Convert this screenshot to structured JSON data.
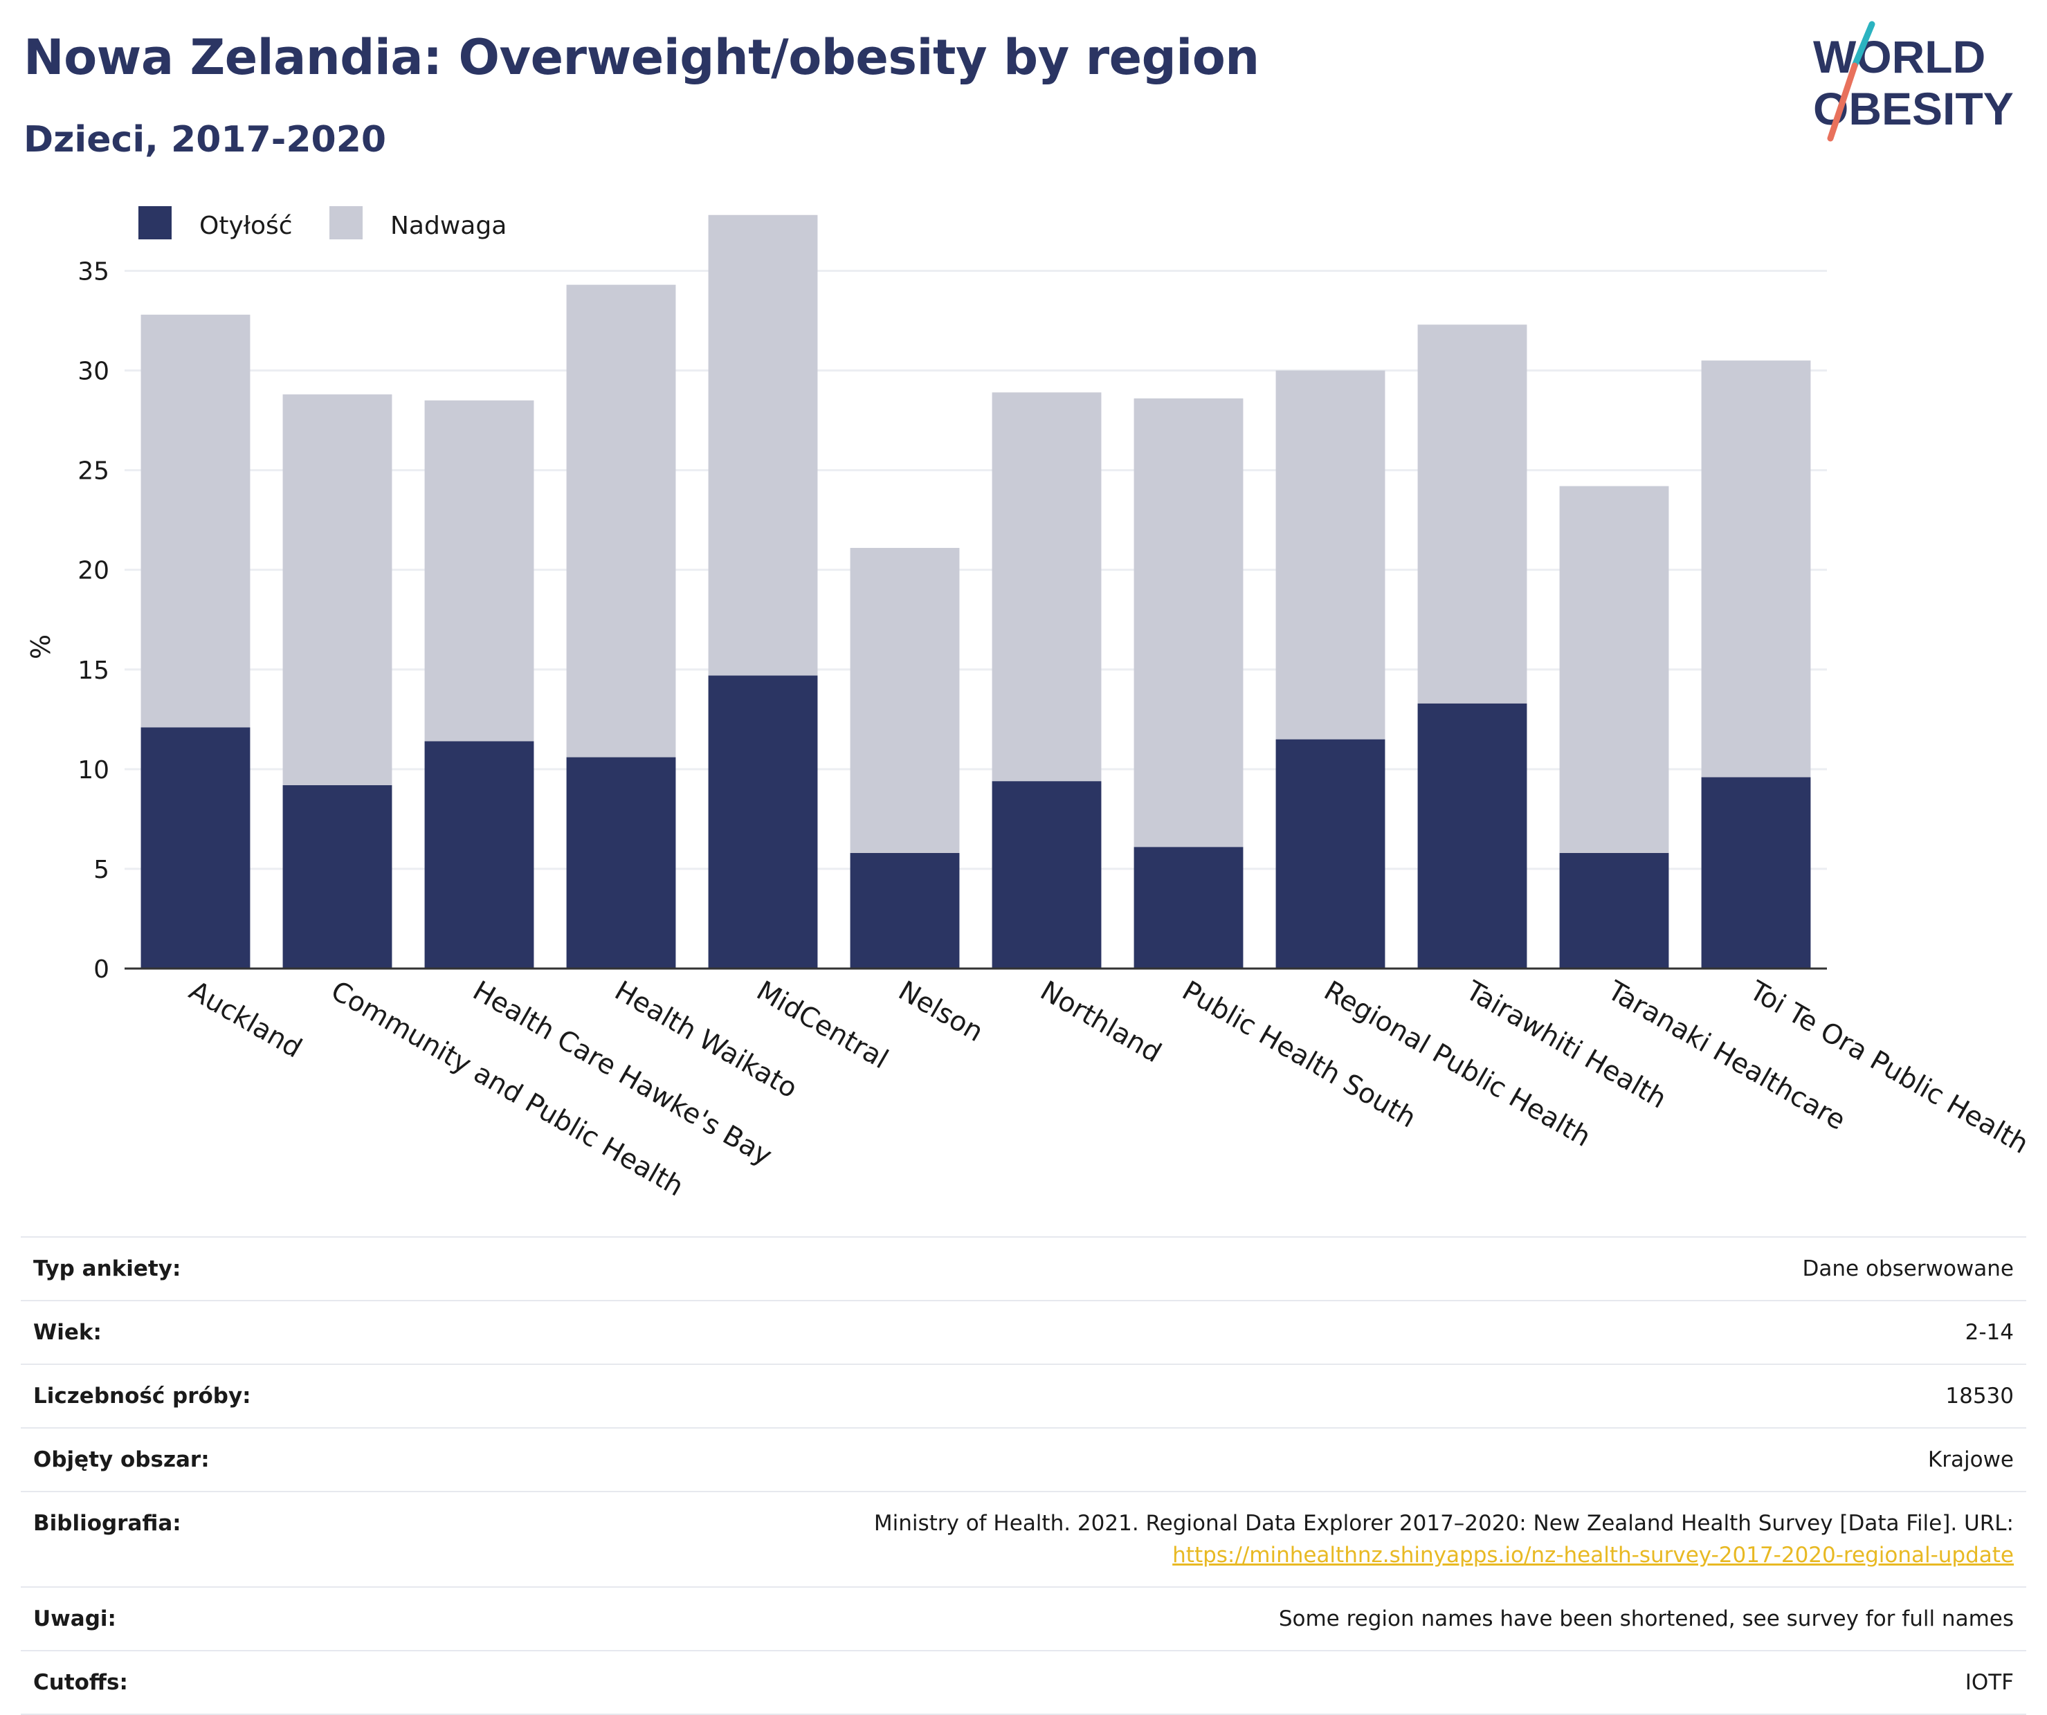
{
  "header": {
    "title": "Nowa Zelandia: Overweight/obesity by region",
    "subtitle": "Dzieci, 2017-2020"
  },
  "logo": {
    "line1": "WORLD",
    "line2": "OBESITY"
  },
  "colors": {
    "obesity": "#2b3563",
    "overweight": "#c9cbd6",
    "accent_teal": "#2bb3c0",
    "accent_coral": "#e8715c",
    "link": "#e8b923"
  },
  "chart_data": {
    "type": "bar",
    "stacked": true,
    "ylabel": "%",
    "xlabel": "",
    "ylim": [
      0,
      38
    ],
    "yticks": [
      0,
      5,
      10,
      15,
      20,
      25,
      30,
      35
    ],
    "grid": true,
    "legend_position": "top-left",
    "categories": [
      "Auckland",
      "Community and Public Health",
      "Health Care Hawke's Bay",
      "Health Waikato",
      "MidCentral",
      "Nelson",
      "Northland",
      "Public Health South",
      "Regional Public Health",
      "Tairawhiti Health",
      "Taranaki Healthcare",
      "Toi Te Ora Public Health"
    ],
    "series": [
      {
        "name": "Otyłość",
        "values": [
          12.1,
          9.2,
          11.4,
          10.6,
          14.7,
          5.8,
          9.4,
          6.1,
          11.5,
          13.3,
          5.8,
          9.6
        ]
      },
      {
        "name": "Nadwaga",
        "values": [
          20.7,
          19.6,
          17.1,
          23.7,
          23.1,
          15.3,
          19.5,
          22.5,
          18.5,
          19.0,
          18.4,
          20.9
        ]
      }
    ]
  },
  "info": [
    {
      "key": "Typ ankiety:",
      "value": "Dane obserwowane"
    },
    {
      "key": "Wiek:",
      "value": "2-14"
    },
    {
      "key": "Liczebność próby:",
      "value": "18530"
    },
    {
      "key": "Objęty obszar:",
      "value": "Krajowe"
    },
    {
      "key": "Bibliografia:",
      "value": "Ministry of Health. 2021. Regional Data Explorer 2017–2020: New Zealand Health Survey [Data File]. URL:",
      "link": "https://minhealthnz.shinyapps.io/nz-health-survey-2017-2020-regional-update"
    },
    {
      "key": "Uwagi:",
      "value": "Some region names have been shortened, see survey for full names"
    },
    {
      "key": "Cutoffs:",
      "value": "IOTF"
    }
  ]
}
